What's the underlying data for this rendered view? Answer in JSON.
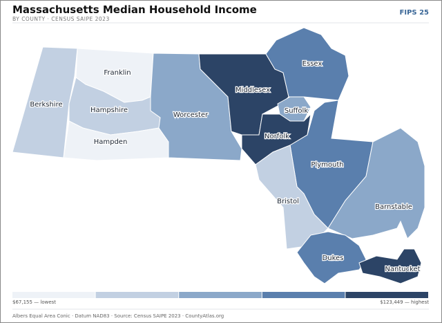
{
  "header": {
    "title": "Massachusetts Median Household Income",
    "subtitle": "BY COUNTY · CENSUS SAIPE 2023",
    "badge": "FIPS 25"
  },
  "legend": {
    "colors": [
      "#eef2f7",
      "#c2d0e2",
      "#8ba8c9",
      "#5a7fad",
      "#2c4466"
    ],
    "min_label": "$67,155 — lowest",
    "max_label": "$123,449 — highest"
  },
  "counties": [
    {
      "name": "Berkshire",
      "class": 2
    },
    {
      "name": "Franklin",
      "class": 1
    },
    {
      "name": "Hampshire",
      "class": 2
    },
    {
      "name": "Hampden",
      "class": 1
    },
    {
      "name": "Worcester",
      "class": 3
    },
    {
      "name": "Middlesex",
      "class": 5
    },
    {
      "name": "Essex",
      "class": 4
    },
    {
      "name": "Suffolk",
      "class": 3
    },
    {
      "name": "Norfolk",
      "class": 5
    },
    {
      "name": "Plymouth",
      "class": 4
    },
    {
      "name": "Bristol",
      "class": 2
    },
    {
      "name": "Barnstable",
      "class": 3
    },
    {
      "name": "Dukes",
      "class": 4
    },
    {
      "name": "Nantucket",
      "class": 5
    }
  ],
  "footer": "Albers Equal Area Conic · Datum NAD83 · Source: Census SAIPE 2023 · CountyAtlas.org"
}
